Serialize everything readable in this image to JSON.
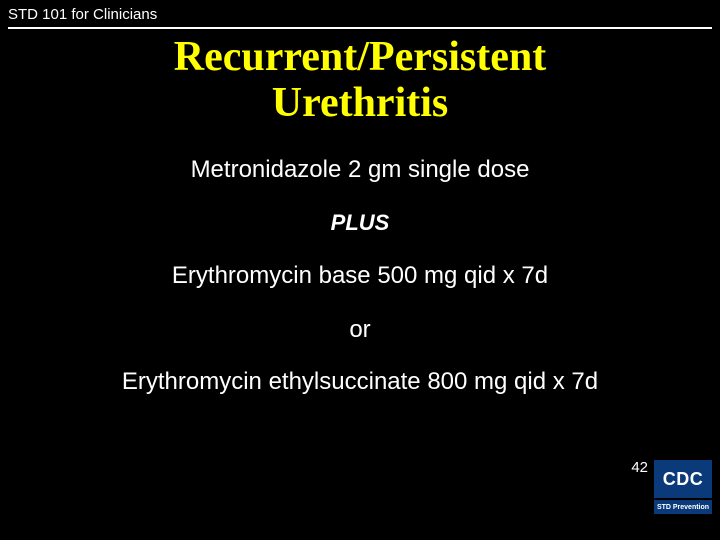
{
  "header": {
    "course_label": "STD 101 for Clinicians"
  },
  "title": {
    "line1": "Recurrent/Persistent",
    "line2": "Urethritis"
  },
  "treatment": {
    "drug1": "Metronidazole 2 gm single dose",
    "conjunction": "PLUS",
    "drug2": "Erythromycin base 500 mg qid x 7d",
    "or": "or",
    "drug3": "Erythromycin ethylsuccinate 800 mg qid x 7d"
  },
  "footer": {
    "page_number": "42",
    "logo_top": "CDC",
    "logo_bottom": "STD Prevention"
  },
  "style": {
    "background_color": "#000000",
    "title_color": "#ffff00",
    "body_color": "#ffffff",
    "logo_bg": "#0a3a7a",
    "title_fontsize": 42,
    "body_fontsize": 24,
    "plus_fontsize": 22,
    "header_fontsize": 15
  }
}
